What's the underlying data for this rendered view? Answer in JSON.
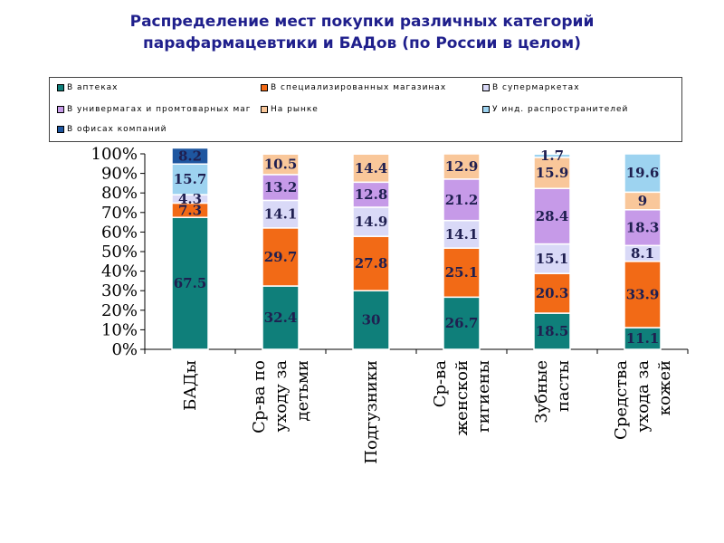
{
  "title_line1": "Распределение мест покупки различных категорий",
  "title_line2": "парафармацевтики и БАДов (по России в целом)",
  "chart_data": {
    "type": "bar",
    "stacked": true,
    "categories": [
      [
        "БАДы"
      ],
      [
        "Ср-ва по",
        "уходу за",
        "детьми"
      ],
      [
        "Подгузники"
      ],
      [
        "Ср-ва",
        "женской",
        "гигиены"
      ],
      [
        "Зубные",
        "пасты"
      ],
      [
        "Средства",
        "ухода за",
        "кожей"
      ]
    ],
    "series": [
      {
        "name": "В аптеках",
        "color": "#0f7f7a",
        "values": [
          67.5,
          32.4,
          30,
          26.7,
          18.5,
          11.1
        ]
      },
      {
        "name": "В специализированных магазинах",
        "color": "#f26a16",
        "values": [
          7.3,
          29.7,
          27.8,
          25.1,
          20.3,
          33.9
        ]
      },
      {
        "name": "В супермаркетах",
        "color": "#d9d9f7",
        "values": [
          4.3,
          14.1,
          14.9,
          14.1,
          15.1,
          8.1
        ]
      },
      {
        "name": "В универмагах и промтоварных маг",
        "color": "#c69ae8",
        "values": [
          0,
          13.2,
          12.8,
          21.2,
          28.4,
          18.3
        ]
      },
      {
        "name": "На рынке",
        "color": "#f9c79a",
        "values": [
          0,
          10.5,
          14.4,
          12.9,
          15.9,
          9
        ]
      },
      {
        "name": "У инд. распространителей",
        "color": "#9dd3f0",
        "values": [
          15.7,
          0,
          0,
          0,
          1.7,
          19.6
        ]
      },
      {
        "name": "В офисах компаний",
        "color": "#1e56a0",
        "values": [
          8.2,
          0,
          0,
          0,
          0,
          0
        ]
      }
    ],
    "data_labels": [
      [
        {
          "s": 0,
          "text": "67.5"
        },
        {
          "s": 1,
          "text": "7.3"
        },
        {
          "s": 2,
          "text": "4.3"
        },
        {
          "s": 5,
          "text": "15.7"
        },
        {
          "s": 6,
          "text": "8.2"
        }
      ],
      [
        {
          "s": 0,
          "text": "32.4"
        },
        {
          "s": 1,
          "text": "29.7"
        },
        {
          "s": 2,
          "text": "14.1"
        },
        {
          "s": 3,
          "text": "13.2"
        },
        {
          "s": 4,
          "text": "10.5"
        }
      ],
      [
        {
          "s": 0,
          "text": "30"
        },
        {
          "s": 1,
          "text": "27.8"
        },
        {
          "s": 2,
          "text": "14.9"
        },
        {
          "s": 3,
          "text": "12.8"
        },
        {
          "s": 4,
          "text": "14.4"
        }
      ],
      [
        {
          "s": 0,
          "text": "26.7"
        },
        {
          "s": 1,
          "text": "25.1"
        },
        {
          "s": 2,
          "text": "14.1"
        },
        {
          "s": 3,
          "text": "21.2"
        },
        {
          "s": 4,
          "text": "12.9"
        }
      ],
      [
        {
          "s": 0,
          "text": "18.5"
        },
        {
          "s": 1,
          "text": "20.3"
        },
        {
          "s": 2,
          "text": "15.1"
        },
        {
          "s": 3,
          "text": "28.4"
        },
        {
          "s": 4,
          "text": "15.9"
        },
        {
          "s": 5,
          "text": "1.7"
        }
      ],
      [
        {
          "s": 0,
          "text": "11.1"
        },
        {
          "s": 1,
          "text": "33.9"
        },
        {
          "s": 2,
          "text": "8.1"
        },
        {
          "s": 3,
          "text": "18.3"
        },
        {
          "s": 4,
          "text": "9"
        },
        {
          "s": 5,
          "text": "19.6"
        }
      ]
    ],
    "yticks": [
      "0%",
      "10%",
      "20%",
      "30%",
      "40%",
      "50%",
      "60%",
      "70%",
      "80%",
      "90%",
      "100%"
    ],
    "ylim": [
      0,
      100
    ],
    "grid": false,
    "legend_position": "top"
  }
}
